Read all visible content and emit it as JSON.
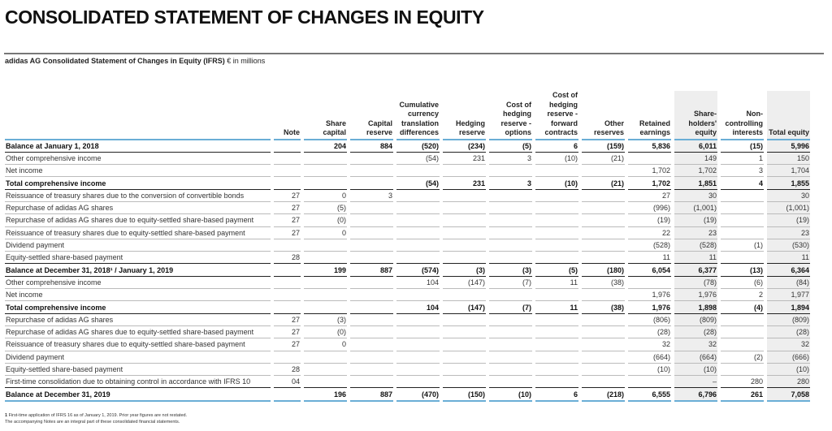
{
  "title": "CONSOLIDATED STATEMENT OF CHANGES IN EQUITY",
  "subtitle": "adidas AG Consolidated Statement of Changes in Equity (IFRS)",
  "unit": "€ in millions",
  "colors": {
    "accent_rule": "#6aaed6",
    "shaded_column": "#eeeeee"
  },
  "headers": [
    "Note",
    "Share\ncapital",
    "Capital\nreserve",
    "Cumulative\ncurrency\ntranslation\ndifferences",
    "Hedging\nreserve",
    "Cost of\nhedging\nreserve -\noptions",
    "Cost of\nhedging\nreserve -\nforward\ncontracts",
    "Other\nreserves",
    "Retained\nearnings",
    "Share-\nholders'\nequity",
    "Non-\ncontrolling\ninterests",
    "Total equity"
  ],
  "rows": [
    {
      "label": "Balance at January 1, 2018",
      "bold": true,
      "cells": [
        "",
        "204",
        "884",
        "(520)",
        "(234)",
        "(5)",
        "6",
        "(159)",
        "5,836",
        "6,011",
        "(15)",
        "5,996"
      ]
    },
    {
      "label": "Other comprehensive income",
      "cells": [
        "",
        "",
        "",
        "(54)",
        "231",
        "3",
        "(10)",
        "(21)",
        "",
        "149",
        "1",
        "150"
      ]
    },
    {
      "label": "Net income",
      "cells": [
        "",
        "",
        "",
        "",
        "",
        "",
        "",
        "",
        "1,702",
        "1,702",
        "3",
        "1,704"
      ]
    },
    {
      "label": "Total comprehensive income",
      "bold": true,
      "cells": [
        "",
        "",
        "",
        "(54)",
        "231",
        "3",
        "(10)",
        "(21)",
        "1,702",
        "1,851",
        "4",
        "1,855"
      ]
    },
    {
      "label": "Reissuance of treasury shares due to the conversion of convertible bonds",
      "cells": [
        "27",
        "0",
        "3",
        "",
        "",
        "",
        "",
        "",
        "27",
        "30",
        "",
        "30"
      ]
    },
    {
      "label": "Repurchase of adidas AG shares",
      "cells": [
        "27",
        "(5)",
        "",
        "",
        "",
        "",
        "",
        "",
        "(996)",
        "(1,001)",
        "",
        "(1,001)"
      ]
    },
    {
      "label": "Repurchase of adidas AG shares due to equity-settled share-based payment",
      "cells": [
        "27",
        "(0)",
        "",
        "",
        "",
        "",
        "",
        "",
        "(19)",
        "(19)",
        "",
        "(19)"
      ]
    },
    {
      "label": "Reissuance of treasury shares due to equity-settled share-based payment",
      "cells": [
        "27",
        "0",
        "",
        "",
        "",
        "",
        "",
        "",
        "22",
        "23",
        "",
        "23"
      ]
    },
    {
      "label": "Dividend payment",
      "cells": [
        "",
        "",
        "",
        "",
        "",
        "",
        "",
        "",
        "(528)",
        "(528)",
        "(1)",
        "(530)"
      ]
    },
    {
      "label": "Equity-settled share-based payment",
      "pre": true,
      "cells": [
        "28",
        "",
        "",
        "",
        "",
        "",
        "",
        "",
        "11",
        "11",
        "",
        "11"
      ]
    },
    {
      "label": "Balance at December 31, 2018¹ / January 1, 2019",
      "bold": true,
      "cells": [
        "",
        "199",
        "887",
        "(574)",
        "(3)",
        "(3)",
        "(5)",
        "(180)",
        "6,054",
        "6,377",
        "(13)",
        "6,364"
      ]
    },
    {
      "label": "Other comprehensive income",
      "cells": [
        "",
        "",
        "",
        "104",
        "(147)",
        "(7)",
        "11",
        "(38)",
        "",
        "(78)",
        "(6)",
        "(84)"
      ]
    },
    {
      "label": "Net income",
      "cells": [
        "",
        "",
        "",
        "",
        "",
        "",
        "",
        "",
        "1,976",
        "1,976",
        "2",
        "1,977"
      ]
    },
    {
      "label": "Total comprehensive income",
      "bold": true,
      "cells": [
        "",
        "",
        "",
        "104",
        "(147)",
        "(7)",
        "11",
        "(38)",
        "1,976",
        "1,898",
        "(4)",
        "1,894"
      ]
    },
    {
      "label": "Repurchase of adidas AG shares",
      "cells": [
        "27",
        "(3)",
        "",
        "",
        "",
        "",
        "",
        "",
        "(806)",
        "(809)",
        "",
        "(809)"
      ]
    },
    {
      "label": "Repurchase of adidas AG shares due to equity-settled share-based payment",
      "cells": [
        "27",
        "(0)",
        "",
        "",
        "",
        "",
        "",
        "",
        "(28)",
        "(28)",
        "",
        "(28)"
      ]
    },
    {
      "label": "Reissuance of treasury shares due to equity-settled share-based payment",
      "cells": [
        "27",
        "0",
        "",
        "",
        "",
        "",
        "",
        "",
        "32",
        "32",
        "",
        "32"
      ]
    },
    {
      "label": "Dividend payment",
      "cells": [
        "",
        "",
        "",
        "",
        "",
        "",
        "",
        "",
        "(664)",
        "(664)",
        "(2)",
        "(666)"
      ]
    },
    {
      "label": "Equity-settled share-based payment",
      "cells": [
        "28",
        "",
        "",
        "",
        "",
        "",
        "",
        "",
        "(10)",
        "(10)",
        "",
        "(10)"
      ]
    },
    {
      "label": "First-time consolidation due to obtaining control in accordance with IFRS 10",
      "pre": true,
      "cells": [
        "04",
        "",
        "",
        "",
        "",
        "",
        "",
        "",
        "",
        "–",
        "280",
        "280"
      ]
    },
    {
      "label": "Balance at December 31, 2019",
      "bold": true,
      "last": true,
      "cells": [
        "",
        "196",
        "887",
        "(470)",
        "(150)",
        "(10)",
        "6",
        "(218)",
        "6,555",
        "6,796",
        "261",
        "7,058"
      ]
    }
  ],
  "footnotes": {
    "marker": "1",
    "note1": "First-time application of IFRS 16 as of January 1, 2019. Prior year figures are not restated.",
    "note2": "The accompanying Notes are an integral part of these consolidated financial statements."
  }
}
